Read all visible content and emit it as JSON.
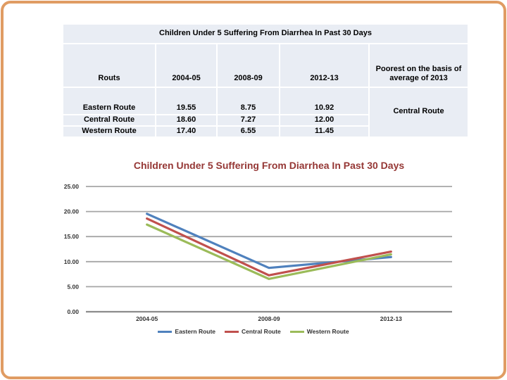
{
  "colors": {
    "frame-border": "#E09C63",
    "table-cell-fill": "#E9EDF4",
    "chart-title": "#953735",
    "grid-line": "#A6A6A6",
    "axis-line": "#8C8C8C"
  },
  "table": {
    "title": "Children Under 5 Suffering From Diarrhea In Past 30 Days",
    "columns": [
      "Routs",
      "2004-05",
      "2008-09",
      "2012-13",
      "Poorest on the basis of average of 2013"
    ],
    "rows": [
      {
        "route": "Eastern Route",
        "v2004": "19.55",
        "v2008": "8.75",
        "v2012": "10.92"
      },
      {
        "route": "Central Route",
        "v2004": "18.60",
        "v2008": "7.27",
        "v2012": "12.00"
      },
      {
        "route": "Western Route",
        "v2004": "17.40",
        "v2008": "6.55",
        "v2012": "11.45"
      }
    ],
    "poorest_value": "Central Route"
  },
  "chart_data": {
    "type": "line",
    "title": "Children Under 5 Suffering From Diarrhea In Past 30 Days",
    "categories": [
      "2004-05",
      "2008-09",
      "2012-13"
    ],
    "series": [
      {
        "name": "Eastern Route",
        "color": "#4F81BD",
        "values": [
          19.55,
          8.75,
          10.92
        ]
      },
      {
        "name": "Central Route",
        "color": "#C0504D",
        "values": [
          18.6,
          7.27,
          12.0
        ]
      },
      {
        "name": "Western Route",
        "color": "#9BBB59",
        "values": [
          17.4,
          6.55,
          11.45
        ]
      }
    ],
    "ylim": [
      0,
      25
    ],
    "yticks": [
      "0.00",
      "5.00",
      "10.00",
      "15.00",
      "20.00",
      "25.00"
    ],
    "grid": true,
    "legend_position": "bottom"
  }
}
